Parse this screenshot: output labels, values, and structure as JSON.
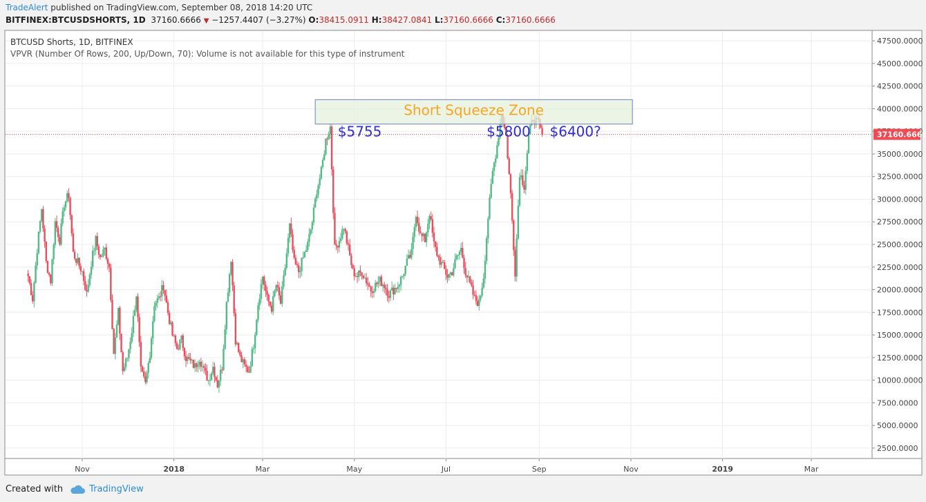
{
  "header": {
    "author": "TradeAlert",
    "published_text": " published on TradingView.com, September 08, 2018 14:20 UTC",
    "symbol": "BITFINEX:BTCUSDSHORTS, 1D",
    "last": "37160.6666",
    "change_arrow": "▼",
    "change": "−1257.4407 (−3.27%)",
    "o_label": "O:",
    "o_value": "38415.0911",
    "h_label": "H:",
    "h_value": "38427.0841",
    "l_label": "L:",
    "l_value": "37160.6666",
    "c_label": "C:",
    "c_value": "37160.6666"
  },
  "pane": {
    "title": "BTCUSD Shorts, 1D, BITFINEX",
    "indicator": "VPVR (Number Of Rows, 200, Up/Down, 70): Volume is not available for this type of instrument"
  },
  "footer": {
    "created_with": "Created with",
    "brand": "TradingView",
    "icon": "cloud-icon"
  },
  "chart_data": {
    "type": "candlestick",
    "ylim": [
      1500,
      48500
    ],
    "y_ticks": [
      2500,
      5000,
      7500,
      10000,
      12500,
      15000,
      17500,
      20000,
      22500,
      25000,
      27500,
      30000,
      32500,
      35000,
      37500,
      40000,
      42500,
      45000,
      47500
    ],
    "y_tick_labels": [
      "2500.0000",
      "5000.0000",
      "7500.0000",
      "10000.0000",
      "12500.0000",
      "15000.0000",
      "17500.0000",
      "20000.0000",
      "22500.0000",
      "25000.0000",
      "27500.0000",
      "30000.0000",
      "32500.0000",
      "35000.0000",
      "37500.0000",
      "40000.0000",
      "42500.0000",
      "45000.0000",
      "47500.0000"
    ],
    "x_labels": [
      {
        "label": "Nov",
        "date": "2017-11-01",
        "bold": false
      },
      {
        "label": "2018",
        "date": "2018-01-01",
        "bold": true
      },
      {
        "label": "Mar",
        "date": "2018-03-01",
        "bold": false
      },
      {
        "label": "May",
        "date": "2018-05-01",
        "bold": false
      },
      {
        "label": "Jul",
        "date": "2018-07-01",
        "bold": false
      },
      {
        "label": "Sep",
        "date": "2018-09-01",
        "bold": false
      },
      {
        "label": "Nov",
        "date": "2018-11-01",
        "bold": false
      },
      {
        "label": "2019",
        "date": "2019-01-01",
        "bold": true
      },
      {
        "label": "Mar",
        "date": "2019-03-01",
        "bold": false
      }
    ],
    "last_price": 37160.6666,
    "last_price_label": "37160.6666",
    "up_color": "#53b987",
    "down_color": "#eb4d5c",
    "closes": [
      {
        "date": "2017-09-26",
        "close": 21500
      },
      {
        "date": "2017-09-29",
        "close": 19000
      },
      {
        "date": "2017-10-02",
        "close": 24500
      },
      {
        "date": "2017-10-05",
        "close": 29000
      },
      {
        "date": "2017-10-08",
        "close": 23000
      },
      {
        "date": "2017-10-11",
        "close": 21000
      },
      {
        "date": "2017-10-14",
        "close": 27500
      },
      {
        "date": "2017-10-17",
        "close": 25500
      },
      {
        "date": "2017-10-20",
        "close": 29500
      },
      {
        "date": "2017-10-23",
        "close": 30500
      },
      {
        "date": "2017-10-26",
        "close": 24000
      },
      {
        "date": "2017-10-29",
        "close": 23000
      },
      {
        "date": "2017-11-01",
        "close": 22000
      },
      {
        "date": "2017-11-04",
        "close": 19500
      },
      {
        "date": "2017-11-07",
        "close": 23000
      },
      {
        "date": "2017-11-10",
        "close": 25500
      },
      {
        "date": "2017-11-13",
        "close": 23500
      },
      {
        "date": "2017-11-16",
        "close": 24500
      },
      {
        "date": "2017-11-19",
        "close": 22500
      },
      {
        "date": "2017-11-22",
        "close": 13000
      },
      {
        "date": "2017-11-25",
        "close": 17500
      },
      {
        "date": "2017-11-28",
        "close": 11000
      },
      {
        "date": "2017-12-01",
        "close": 12500
      },
      {
        "date": "2017-12-04",
        "close": 15500
      },
      {
        "date": "2017-12-07",
        "close": 19500
      },
      {
        "date": "2017-12-10",
        "close": 11000
      },
      {
        "date": "2017-12-13",
        "close": 9500
      },
      {
        "date": "2017-12-16",
        "close": 13000
      },
      {
        "date": "2017-12-19",
        "close": 18500
      },
      {
        "date": "2017-12-22",
        "close": 19000
      },
      {
        "date": "2017-12-25",
        "close": 20500
      },
      {
        "date": "2017-12-28",
        "close": 17500
      },
      {
        "date": "2017-12-31",
        "close": 15000
      },
      {
        "date": "2018-01-03",
        "close": 13500
      },
      {
        "date": "2018-01-06",
        "close": 14500
      },
      {
        "date": "2018-01-09",
        "close": 12500
      },
      {
        "date": "2018-01-12",
        "close": 12000
      },
      {
        "date": "2018-01-15",
        "close": 11500
      },
      {
        "date": "2018-01-18",
        "close": 12500
      },
      {
        "date": "2018-01-21",
        "close": 11000
      },
      {
        "date": "2018-01-24",
        "close": 10000
      },
      {
        "date": "2018-01-27",
        "close": 11500
      },
      {
        "date": "2018-01-30",
        "close": 9500
      },
      {
        "date": "2018-02-02",
        "close": 11500
      },
      {
        "date": "2018-02-05",
        "close": 18500
      },
      {
        "date": "2018-02-08",
        "close": 23500
      },
      {
        "date": "2018-02-11",
        "close": 14500
      },
      {
        "date": "2018-02-14",
        "close": 12500
      },
      {
        "date": "2018-02-17",
        "close": 11500
      },
      {
        "date": "2018-02-20",
        "close": 11000
      },
      {
        "date": "2018-02-23",
        "close": 14000
      },
      {
        "date": "2018-02-26",
        "close": 18500
      },
      {
        "date": "2018-03-01",
        "close": 21500
      },
      {
        "date": "2018-03-04",
        "close": 19000
      },
      {
        "date": "2018-03-07",
        "close": 18000
      },
      {
        "date": "2018-03-10",
        "close": 20500
      },
      {
        "date": "2018-03-13",
        "close": 18500
      },
      {
        "date": "2018-03-16",
        "close": 22500
      },
      {
        "date": "2018-03-19",
        "close": 27000
      },
      {
        "date": "2018-03-22",
        "close": 23000
      },
      {
        "date": "2018-03-25",
        "close": 22000
      },
      {
        "date": "2018-03-28",
        "close": 23500
      },
      {
        "date": "2018-03-31",
        "close": 25000
      },
      {
        "date": "2018-04-03",
        "close": 27500
      },
      {
        "date": "2018-04-06",
        "close": 31000
      },
      {
        "date": "2018-04-09",
        "close": 33000
      },
      {
        "date": "2018-04-12",
        "close": 36500
      },
      {
        "date": "2018-04-15",
        "close": 38000
      },
      {
        "date": "2018-04-18",
        "close": 24500
      },
      {
        "date": "2018-04-21",
        "close": 25500
      },
      {
        "date": "2018-04-24",
        "close": 27000
      },
      {
        "date": "2018-04-27",
        "close": 24500
      },
      {
        "date": "2018-04-30",
        "close": 22000
      },
      {
        "date": "2018-05-03",
        "close": 21500
      },
      {
        "date": "2018-05-06",
        "close": 22000
      },
      {
        "date": "2018-05-09",
        "close": 21000
      },
      {
        "date": "2018-05-12",
        "close": 20000
      },
      {
        "date": "2018-05-15",
        "close": 20500
      },
      {
        "date": "2018-05-18",
        "close": 21000
      },
      {
        "date": "2018-05-21",
        "close": 20500
      },
      {
        "date": "2018-05-24",
        "close": 19500
      },
      {
        "date": "2018-05-27",
        "close": 20000
      },
      {
        "date": "2018-05-30",
        "close": 20500
      },
      {
        "date": "2018-06-02",
        "close": 21500
      },
      {
        "date": "2018-06-05",
        "close": 23000
      },
      {
        "date": "2018-06-08",
        "close": 24000
      },
      {
        "date": "2018-06-11",
        "close": 28500
      },
      {
        "date": "2018-06-14",
        "close": 26000
      },
      {
        "date": "2018-06-17",
        "close": 25500
      },
      {
        "date": "2018-06-20",
        "close": 28500
      },
      {
        "date": "2018-06-23",
        "close": 25000
      },
      {
        "date": "2018-06-26",
        "close": 23500
      },
      {
        "date": "2018-06-29",
        "close": 22500
      },
      {
        "date": "2018-07-02",
        "close": 21500
      },
      {
        "date": "2018-07-05",
        "close": 22000
      },
      {
        "date": "2018-07-08",
        "close": 23500
      },
      {
        "date": "2018-07-11",
        "close": 24500
      },
      {
        "date": "2018-07-14",
        "close": 22000
      },
      {
        "date": "2018-07-17",
        "close": 20500
      },
      {
        "date": "2018-07-20",
        "close": 19000
      },
      {
        "date": "2018-07-23",
        "close": 18500
      },
      {
        "date": "2018-07-26",
        "close": 21500
      },
      {
        "date": "2018-07-29",
        "close": 28000
      },
      {
        "date": "2018-08-01",
        "close": 33000
      },
      {
        "date": "2018-08-04",
        "close": 36000
      },
      {
        "date": "2018-08-07",
        "close": 39500
      },
      {
        "date": "2018-08-10",
        "close": 37000
      },
      {
        "date": "2018-08-13",
        "close": 30500
      },
      {
        "date": "2018-08-16",
        "close": 22000
      },
      {
        "date": "2018-08-19",
        "close": 33000
      },
      {
        "date": "2018-08-22",
        "close": 31500
      },
      {
        "date": "2018-08-25",
        "close": 37000
      },
      {
        "date": "2018-08-28",
        "close": 39000
      },
      {
        "date": "2018-08-31",
        "close": 38400
      },
      {
        "date": "2018-09-03",
        "close": 37160
      }
    ],
    "annotations": [
      {
        "text": "Short Squeeze Zone",
        "type": "rectangle",
        "x_from": "2018-04-05",
        "x_to": "2018-11-02",
        "y_from": 38300,
        "y_to": 41000,
        "fill": "#e6f0dc",
        "text_color": "#f5a623"
      },
      {
        "text": "$5755",
        "type": "label",
        "x": "2018-04-20",
        "y": 37400,
        "color": "#2f2fcf"
      },
      {
        "text": "$5800",
        "type": "label",
        "x": "2018-07-28",
        "y": 37400,
        "color": "#2f2fcf"
      },
      {
        "text": "$6400?",
        "type": "label",
        "x": "2018-09-08",
        "y": 37400,
        "color": "#2f2fcf"
      }
    ]
  }
}
